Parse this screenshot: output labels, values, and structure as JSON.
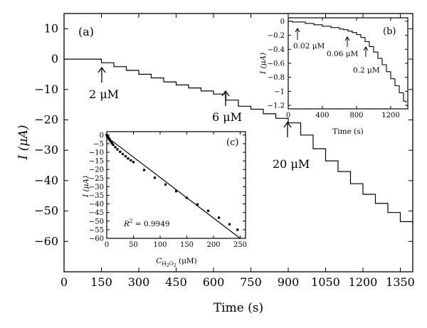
{
  "chart_data": [
    {
      "type": "line",
      "panel_label": "(a)",
      "xlabel": "Time (s)",
      "ylabel": "I (μA)",
      "xlim": [
        0,
        1400
      ],
      "ylim": [
        -70,
        15
      ],
      "x_ticks": [
        0,
        150,
        300,
        450,
        600,
        750,
        900,
        1050,
        1200,
        1350
      ],
      "y_ticks": [
        10,
        0,
        -10,
        -20,
        -30,
        -40,
        -50,
        -60
      ],
      "tick_labels_x": [
        "0",
        "150",
        "300",
        "450",
        "600",
        "750",
        "900",
        "1050",
        "1200",
        "1350"
      ],
      "tick_labels_y": [
        "10",
        "0",
        "−10",
        "−20",
        "−30",
        "−40",
        "−50",
        "−60"
      ],
      "series": [
        {
          "x": [
            0,
            100,
            150,
            200,
            250,
            300,
            350,
            400,
            450,
            500,
            550,
            600,
            650,
            700,
            750,
            800,
            850,
            900,
            950,
            1000,
            1050,
            1100,
            1150,
            1200,
            1250,
            1300,
            1350,
            1400
          ],
          "y": [
            0,
            0,
            -1.2,
            -2.5,
            -3.7,
            -5.0,
            -6.2,
            -7.5,
            -8.5,
            -9.5,
            -10.5,
            -11.5,
            -13.5,
            -15.5,
            -16.5,
            -18.0,
            -19.5,
            -21.0,
            -25.0,
            -29.5,
            -33.5,
            -37.0,
            -41.0,
            -44.5,
            -47.5,
            -50.5,
            -53.5,
            -54.0
          ]
        }
      ],
      "annotations": [
        {
          "text": "2 μM",
          "x": 160
        },
        {
          "text": "6 μM",
          "x": 650
        },
        {
          "text": "20 μM",
          "x": 900
        }
      ]
    },
    {
      "type": "line",
      "panel_label": "(b)",
      "xlabel": "Time (s)",
      "ylabel": "I (μA)",
      "xlim": [
        0,
        1400
      ],
      "ylim": [
        -1.25,
        0.05
      ],
      "x_ticks": [
        0,
        400,
        800,
        1200
      ],
      "y_ticks": [
        0,
        -0.2,
        -0.4,
        -0.6,
        -0.8,
        -1.0,
        -1.2
      ],
      "tick_labels_x": [
        "0",
        "400",
        "800",
        "1200"
      ],
      "tick_labels_y": [
        "0",
        "−0.2",
        "−0.4",
        "−0.6",
        "−0.8",
        "−1",
        "−1.2"
      ],
      "series": [
        {
          "x": [
            0,
            50,
            100,
            200,
            300,
            400,
            500,
            600,
            650,
            700,
            750,
            800,
            850,
            900,
            950,
            1000,
            1050,
            1100,
            1150,
            1200,
            1250,
            1300,
            1350,
            1380
          ],
          "y": [
            0,
            -0.01,
            -0.01,
            -0.03,
            -0.05,
            -0.07,
            -0.09,
            -0.11,
            -0.12,
            -0.14,
            -0.16,
            -0.19,
            -0.23,
            -0.29,
            -0.36,
            -0.44,
            -0.53,
            -0.62,
            -0.72,
            -0.82,
            -0.92,
            -1.02,
            -1.14,
            -1.16
          ]
        }
      ],
      "annotations": [
        {
          "text": "0.02 μM",
          "x": 60
        },
        {
          "text": "0.06 μM",
          "x": 650
        },
        {
          "text": "0.2 μM",
          "x": 880
        }
      ]
    },
    {
      "type": "scatter",
      "panel_label": "(c)",
      "xlabel": "C H2O2 (μM)",
      "ylabel": "I (μA)",
      "xlim": [
        0,
        260
      ],
      "ylim": [
        -60,
        2
      ],
      "x_ticks": [
        0,
        50,
        100,
        150,
        200,
        250
      ],
      "y_ticks": [
        0,
        -5,
        -10,
        -15,
        -20,
        -25,
        -30,
        -35,
        -40,
        -45,
        -50,
        -55,
        -60
      ],
      "tick_labels_x": [
        "0",
        "50",
        "100",
        "150",
        "200",
        "250"
      ],
      "tick_labels_y": [
        "0",
        "−5",
        "−10",
        "−15",
        "−20",
        "−25",
        "−30",
        "−35",
        "−40",
        "−45",
        "−50",
        "−55",
        "−60"
      ],
      "points": {
        "x": [
          0,
          0.5,
          1,
          1.5,
          2,
          3,
          4,
          5,
          6,
          8,
          10,
          12,
          16,
          20,
          25,
          30,
          35,
          40,
          45,
          50,
          70,
          90,
          110,
          130,
          150,
          170,
          190,
          210,
          230,
          245
        ],
        "y": [
          0,
          -0.3,
          -0.5,
          -0.8,
          -1.0,
          -1.5,
          -2.0,
          -2.5,
          -3.0,
          -4.0,
          -4.8,
          -5.6,
          -7.0,
          -8.3,
          -9.7,
          -11.0,
          -12.3,
          -13.6,
          -14.7,
          -15.7,
          -20.3,
          -24.8,
          -28.7,
          -32.6,
          -36.5,
          -40.3,
          -44.0,
          -48.0,
          -51.8,
          -55.0
        ]
      },
      "fit": {
        "x": [
          0,
          250
        ],
        "y": [
          -1.0,
          -60.0
        ]
      },
      "annotations": [
        {
          "text": "R",
          "superscript": "2",
          "rest": " = 0.9949"
        }
      ]
    }
  ]
}
